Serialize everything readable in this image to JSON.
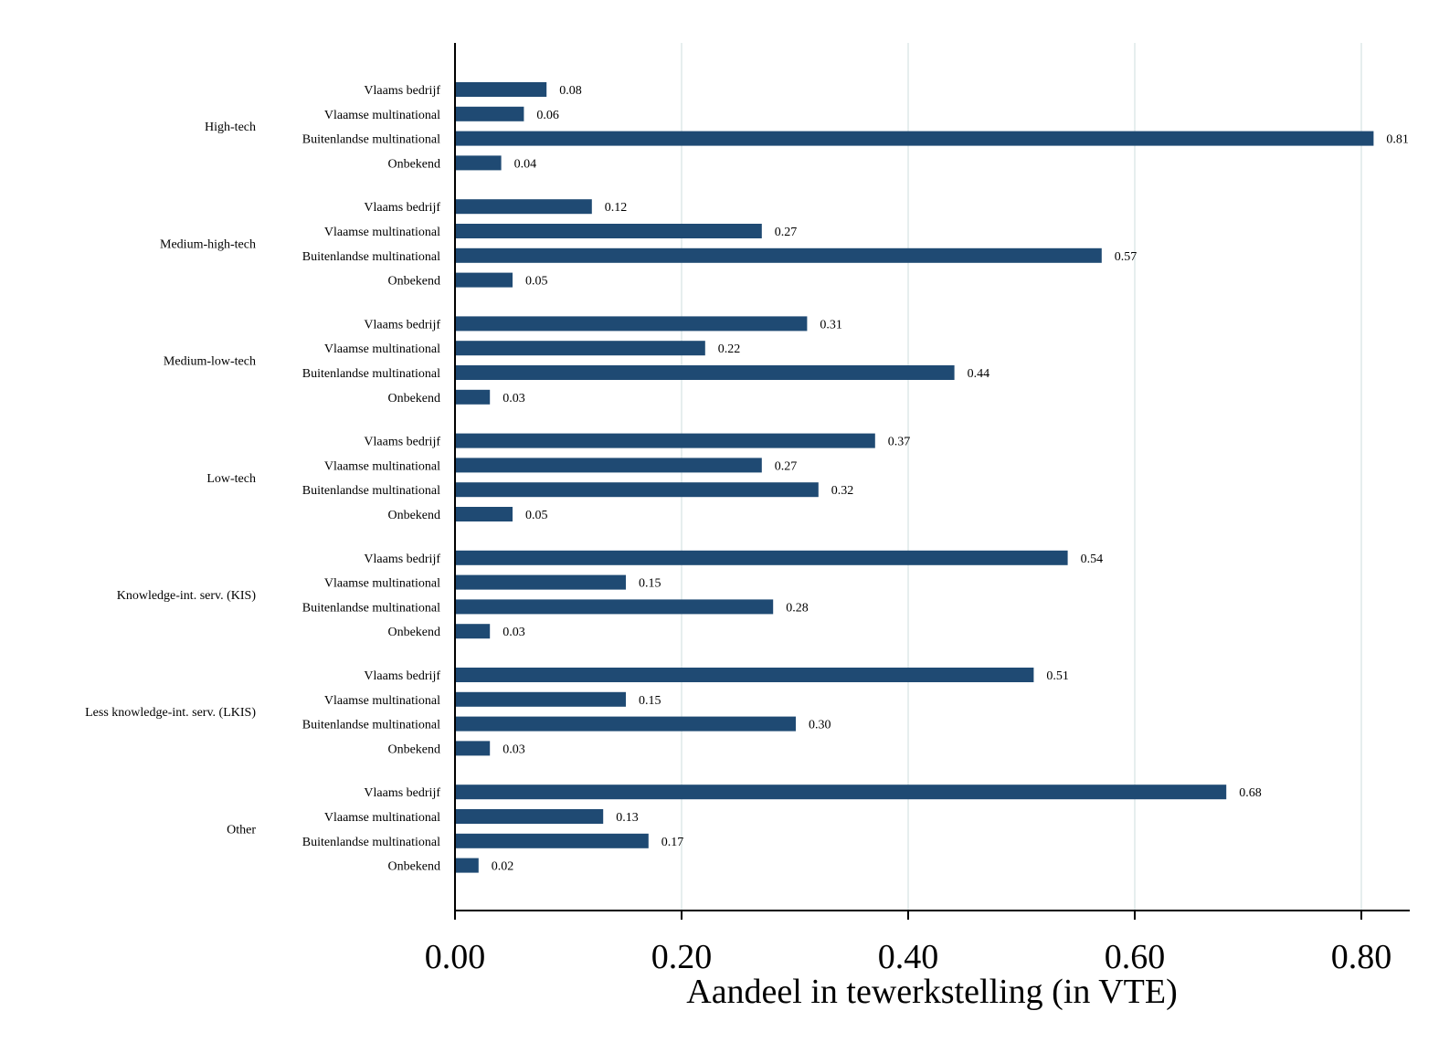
{
  "chart_data": {
    "type": "bar",
    "orientation": "horizontal",
    "title": "",
    "xlabel": "Aandeel in tewerkstelling (in VTE)",
    "ylabel": "",
    "xlim": [
      0,
      0.85
    ],
    "x_ticks": [
      "0.00",
      "0.20",
      "0.40",
      "0.60",
      "0.80"
    ],
    "x_tick_values": [
      0,
      0.2,
      0.4,
      0.6,
      0.8
    ],
    "grid": "vertical",
    "legend": "none",
    "bar_color": "#1f4a73",
    "grid_color": "#dde9e9",
    "groups": [
      {
        "name": "High-tech",
        "bars": [
          {
            "label": "Vlaams bedrijf",
            "value": 0.08,
            "display": "0.08"
          },
          {
            "label": "Vlaamse multinational",
            "value": 0.06,
            "display": "0.06"
          },
          {
            "label": "Buitenlandse multinational",
            "value": 0.81,
            "display": "0.81"
          },
          {
            "label": "Onbekend",
            "value": 0.04,
            "display": "0.04"
          }
        ]
      },
      {
        "name": "Medium-high-tech",
        "bars": [
          {
            "label": "Vlaams bedrijf",
            "value": 0.12,
            "display": "0.12"
          },
          {
            "label": "Vlaamse multinational",
            "value": 0.27,
            "display": "0.27"
          },
          {
            "label": "Buitenlandse multinational",
            "value": 0.57,
            "display": "0.57"
          },
          {
            "label": "Onbekend",
            "value": 0.05,
            "display": "0.05"
          }
        ]
      },
      {
        "name": "Medium-low-tech",
        "bars": [
          {
            "label": "Vlaams bedrijf",
            "value": 0.31,
            "display": "0.31"
          },
          {
            "label": "Vlaamse multinational",
            "value": 0.22,
            "display": "0.22"
          },
          {
            "label": "Buitenlandse multinational",
            "value": 0.44,
            "display": "0.44"
          },
          {
            "label": "Onbekend",
            "value": 0.03,
            "display": "0.03"
          }
        ]
      },
      {
        "name": "Low-tech",
        "bars": [
          {
            "label": "Vlaams bedrijf",
            "value": 0.37,
            "display": "0.37"
          },
          {
            "label": "Vlaamse multinational",
            "value": 0.27,
            "display": "0.27"
          },
          {
            "label": "Buitenlandse multinational",
            "value": 0.32,
            "display": "0.32"
          },
          {
            "label": "Onbekend",
            "value": 0.05,
            "display": "0.05"
          }
        ]
      },
      {
        "name": "Knowledge-int. serv. (KIS)",
        "bars": [
          {
            "label": "Vlaams bedrijf",
            "value": 0.54,
            "display": "0.54"
          },
          {
            "label": "Vlaamse multinational",
            "value": 0.15,
            "display": "0.15"
          },
          {
            "label": "Buitenlandse multinational",
            "value": 0.28,
            "display": "0.28"
          },
          {
            "label": "Onbekend",
            "value": 0.03,
            "display": "0.03"
          }
        ]
      },
      {
        "name": "Less knowledge-int. serv. (LKIS)",
        "bars": [
          {
            "label": "Vlaams bedrijf",
            "value": 0.51,
            "display": "0.51"
          },
          {
            "label": "Vlaamse multinational",
            "value": 0.15,
            "display": "0.15"
          },
          {
            "label": "Buitenlandse multinational",
            "value": 0.3,
            "display": "0.30"
          },
          {
            "label": "Onbekend",
            "value": 0.03,
            "display": "0.03"
          }
        ]
      },
      {
        "name": "Other",
        "bars": [
          {
            "label": "Vlaams bedrijf",
            "value": 0.68,
            "display": "0.68"
          },
          {
            "label": "Vlaamse multinational",
            "value": 0.13,
            "display": "0.13"
          },
          {
            "label": "Buitenlandse multinational",
            "value": 0.17,
            "display": "0.17"
          },
          {
            "label": "Onbekend",
            "value": 0.02,
            "display": "0.02"
          }
        ]
      }
    ]
  }
}
